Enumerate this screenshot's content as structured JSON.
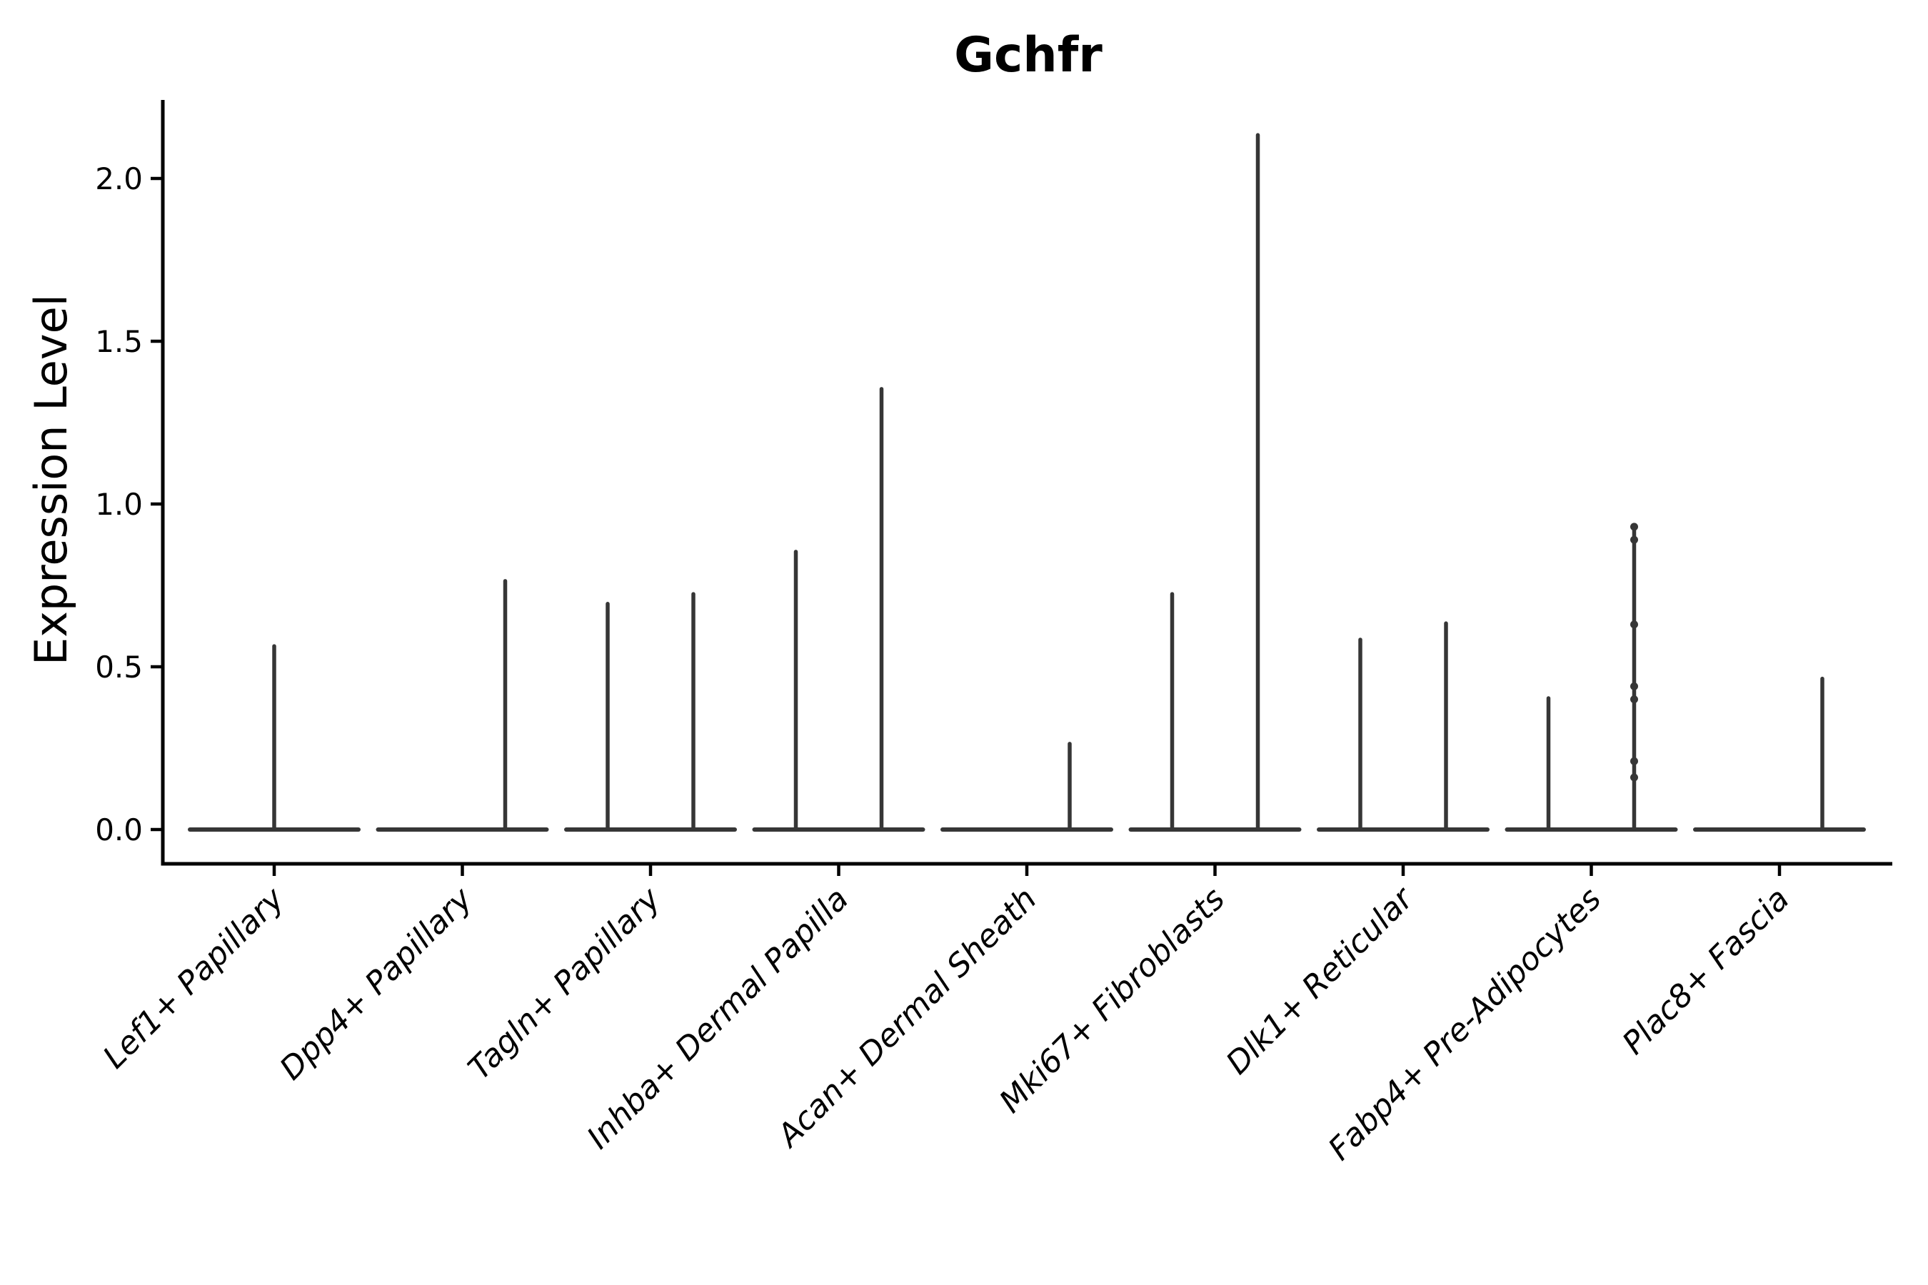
{
  "chart_data": {
    "type": "violin",
    "title": "Gchfr",
    "ylabel": "Expression Level",
    "xlabel": "",
    "ylim": [
      -0.11,
      2.24
    ],
    "yticks": [
      0.0,
      0.5,
      1.0,
      1.5,
      2.0
    ],
    "ytick_labels": [
      "0.0",
      "0.5",
      "1.0",
      "1.5",
      "2.0"
    ],
    "grid": false,
    "legend": "none",
    "colors": {
      "violin": "#363636",
      "axis": "#000000",
      "background": "#ffffff"
    },
    "categories": [
      {
        "label": "Lef1+ Papillary",
        "violins": [
          {
            "pos": 0,
            "max": 0.57
          }
        ]
      },
      {
        "label": "Dpp4+ Papillary",
        "violins": [
          {
            "pos": -1,
            "max": 0
          },
          {
            "pos": 1,
            "max": 0.77
          }
        ]
      },
      {
        "label": "Tagln+ Papillary",
        "violins": [
          {
            "pos": -1,
            "max": 0.7
          },
          {
            "pos": 1,
            "max": 0.73
          }
        ]
      },
      {
        "label": "Inhba+ Dermal Papilla",
        "violins": [
          {
            "pos": -1,
            "max": 0.86
          },
          {
            "pos": 1,
            "max": 1.36
          }
        ]
      },
      {
        "label": "Acan+ Dermal Sheath",
        "violins": [
          {
            "pos": -1,
            "max": 0
          },
          {
            "pos": 1,
            "max": 0.27
          }
        ]
      },
      {
        "label": "Mki67+ Fibroblasts",
        "violins": [
          {
            "pos": -1,
            "max": 0.73
          },
          {
            "pos": 1,
            "max": 2.14
          }
        ]
      },
      {
        "label": "Dlk1+ Reticular",
        "violins": [
          {
            "pos": -1,
            "max": 0.59
          },
          {
            "pos": 1,
            "max": 0.64
          }
        ]
      },
      {
        "label": "Fabp4+ Pre-Adipocytes",
        "violins": [
          {
            "pos": -1,
            "max": 0.41
          },
          {
            "pos": 1,
            "max": 0.93,
            "points": [
              0.93,
              0.89,
              0.63,
              0.44,
              0.4,
              0.21,
              0.16
            ]
          }
        ]
      },
      {
        "label": "Plac8+ Fascia",
        "violins": [
          {
            "pos": -1,
            "max": 0
          },
          {
            "pos": 1,
            "max": 0.47
          }
        ]
      }
    ]
  }
}
